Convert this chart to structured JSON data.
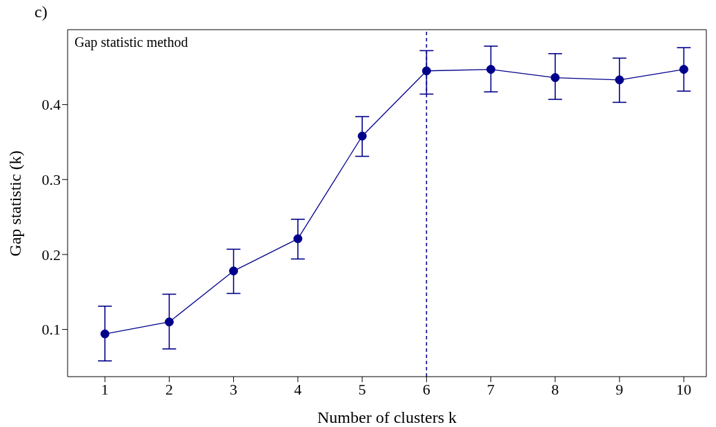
{
  "chart_data": {
    "type": "line",
    "title": "Gap statistic method",
    "xlabel": "Number of clusters k",
    "ylabel": "Gap statistic (k)",
    "annotations": [
      "c)"
    ],
    "x": [
      1,
      2,
      3,
      4,
      5,
      6,
      7,
      8,
      9,
      10
    ],
    "series": [
      {
        "color": "#00008b",
        "values": [
          0.094,
          0.11,
          0.178,
          0.221,
          0.358,
          0.445,
          0.447,
          0.436,
          0.433,
          0.447
        ],
        "errors": [
          [
            0.058,
            0.131
          ],
          [
            0.074,
            0.147
          ],
          [
            0.148,
            0.207
          ],
          [
            0.194,
            0.247
          ],
          [
            0.331,
            0.384
          ],
          [
            0.414,
            0.472
          ],
          [
            0.417,
            0.478
          ],
          [
            0.407,
            0.468
          ],
          [
            0.403,
            0.462
          ],
          [
            0.418,
            0.476
          ]
        ]
      }
    ],
    "xlim": [
      0.42,
      10.35
    ],
    "xticks": [
      1,
      2,
      3,
      4,
      5,
      6,
      7,
      8,
      9,
      10
    ],
    "ylim": [
      0.037,
      0.5
    ],
    "yticks": [
      0.1,
      0.2,
      0.3,
      0.4
    ],
    "ref_lines": [
      {
        "axis": "x",
        "value": 6,
        "color": "#00008b",
        "line_style": "dashed"
      }
    ],
    "grid": false,
    "marker": "circle",
    "line_style": "solid"
  }
}
